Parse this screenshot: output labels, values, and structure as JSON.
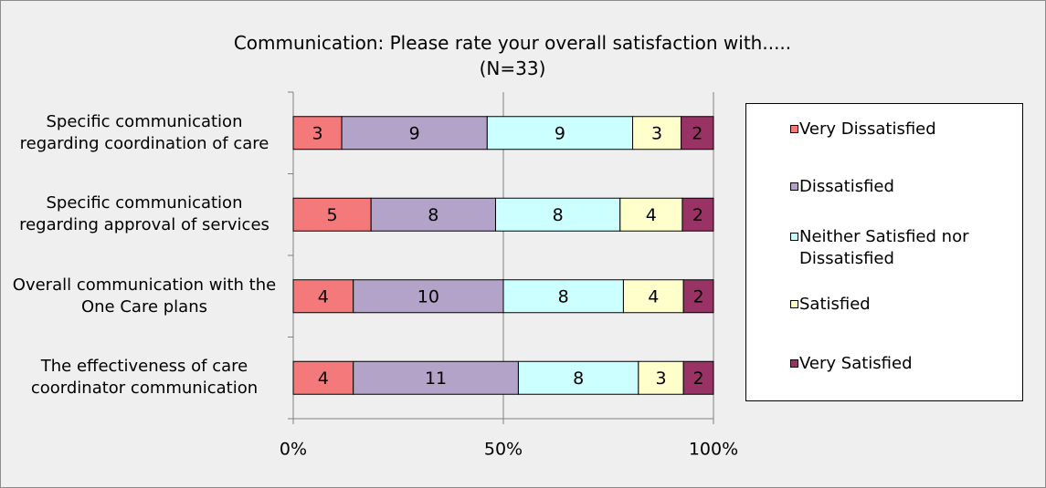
{
  "chart_data": {
    "type": "bar",
    "orientation": "horizontal",
    "stacked": true,
    "percent_stacked": true,
    "title": "Communication: Please rate your overall satisfaction with.....",
    "subtitle": "(N=33)",
    "categories": [
      "Specific communication regarding coordination of care",
      "Specific communication regarding approval of services",
      "Overall communication with the One Care plans",
      "The effectiveness of care coordinator communication"
    ],
    "series": [
      {
        "name": "Very Dissatisfied",
        "color": "#f4797b",
        "values": [
          3,
          5,
          4,
          4
        ]
      },
      {
        "name": "Dissatisfied",
        "color": "#b3a3c9",
        "values": [
          9,
          8,
          10,
          11
        ]
      },
      {
        "name": "Neither Satisfied nor Dissatisfied",
        "color": "#ccffff",
        "values": [
          9,
          8,
          8,
          8
        ]
      },
      {
        "name": "Satisfied",
        "color": "#ffffcc",
        "values": [
          3,
          4,
          4,
          3
        ]
      },
      {
        "name": "Very Satisfied",
        "color": "#993366",
        "values": [
          2,
          2,
          2,
          2
        ]
      }
    ],
    "xlim": [
      0,
      100
    ],
    "xticks": [
      {
        "value": 0,
        "label": "0%"
      },
      {
        "value": 50,
        "label": "50%"
      },
      {
        "value": 100,
        "label": "100%"
      }
    ],
    "grid": true,
    "legend": "right"
  }
}
